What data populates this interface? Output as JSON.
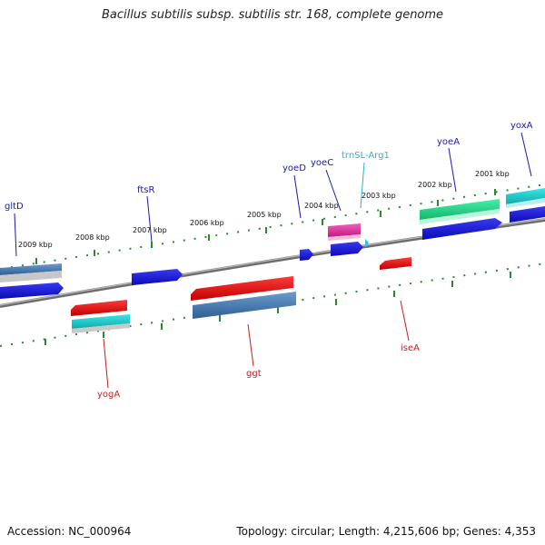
{
  "title": "Bacillus subtilis subsp. subtilis str. 168, complete genome",
  "footer": {
    "accession": "Accession: NC_000964",
    "topology": "Topology: circular; Length: 4,215,606 bp; Genes: 4,353"
  },
  "scale_labels": [
    "2009 kbp",
    "2008 kbp",
    "2007 kbp",
    "2006 kbp",
    "2005 kbp",
    "2004 kbp",
    "2003 kbp",
    "2002 kbp",
    "2001 kbp"
  ],
  "gene_labels_top": [
    "gltD",
    "ftsR",
    "yoeD",
    "yoeC",
    "trnSL-Arg1",
    "yoeA",
    "yoxA"
  ],
  "gene_labels_bottom": [
    "yogA",
    "ggt",
    "iseA"
  ],
  "colors": {
    "blue": "#0b0bd6",
    "red": "#e00f0f",
    "steel": "#3c78b4",
    "teal": "#1cc9c9",
    "green": "#22d98a",
    "pink": "#e0339c",
    "cyan": "#2ec5e8",
    "label_blue": "#1919b4",
    "label_red": "#c81e1e",
    "label_cyan": "#2ab0d0",
    "tick_green": "#2b8a2b",
    "backbone": "#777777"
  }
}
